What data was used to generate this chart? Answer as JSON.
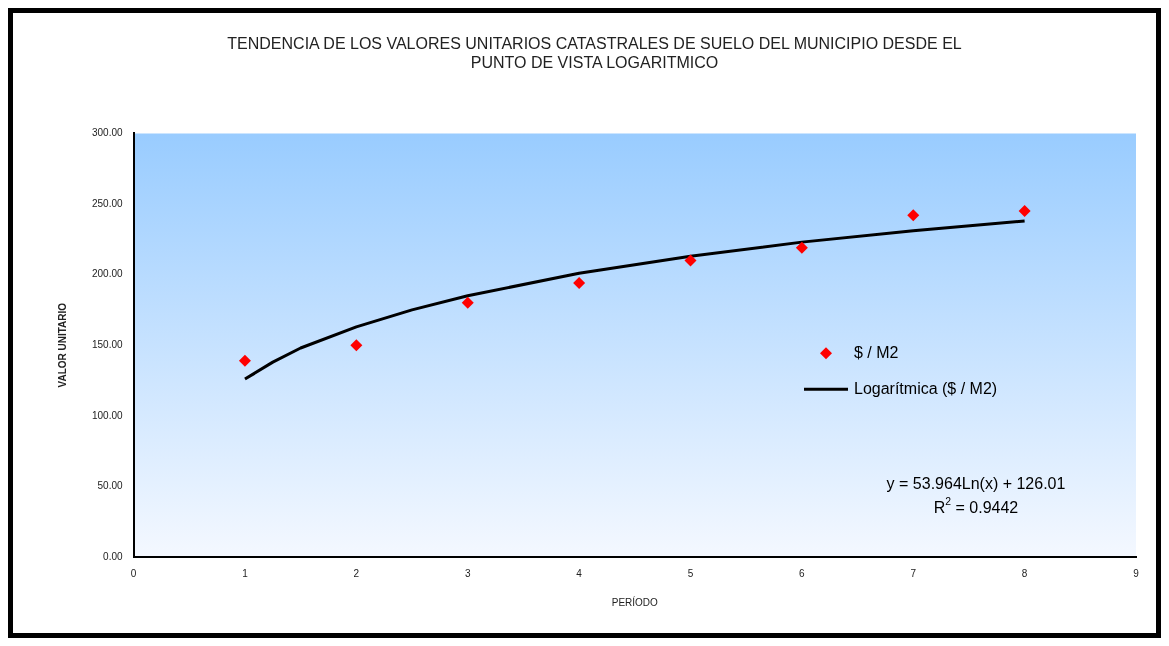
{
  "chart_data": {
    "type": "scatter",
    "title": "TENDENCIA DE LOS VALORES UNITARIOS CATASTRALES DE SUELO DEL MUNICIPIO DESDE EL PUNTO DE VISTA LOGARITMICO",
    "xlabel": "PERÍODO",
    "ylabel": "VALOR UNITARIO",
    "series": [
      {
        "name": "$ / M2",
        "type": "scatter",
        "color": "#ff0000",
        "marker": "diamond",
        "x": [
          1,
          2,
          3,
          4,
          5,
          6,
          7,
          8
        ],
        "values": [
          139,
          150,
          180,
          194,
          210,
          219,
          242,
          245
        ]
      },
      {
        "name": "Logarítmica ($ / M2)",
        "type": "line",
        "color": "#000000",
        "marker": "none",
        "line_style": "solid",
        "x": [
          1,
          1.25,
          1.5,
          2,
          2.5,
          3,
          4,
          5,
          6,
          7,
          8
        ],
        "values": [
          126,
          138,
          148,
          163,
          175,
          185,
          201,
          213,
          223,
          231,
          238
        ]
      }
    ],
    "xlim": [
      0,
      9
    ],
    "xticks": [
      0,
      1,
      2,
      3,
      4,
      5,
      6,
      7,
      8,
      9
    ],
    "ylim": [
      0,
      300
    ],
    "yticks": [
      {
        "value": 0,
        "label": "0.00"
      },
      {
        "value": 50,
        "label": "50.00"
      },
      {
        "value": 100,
        "label": "100.00"
      },
      {
        "value": 150,
        "label": "150.00"
      },
      {
        "value": 200,
        "label": "200.00"
      },
      {
        "value": 250,
        "label": "250.00"
      },
      {
        "value": 300,
        "label": "300.00"
      }
    ],
    "grid": false,
    "legend": "right",
    "annotations": [
      "y = 53.964Ln(x) + 126.01",
      "R$^{2}$ = 0.9442"
    ]
  }
}
